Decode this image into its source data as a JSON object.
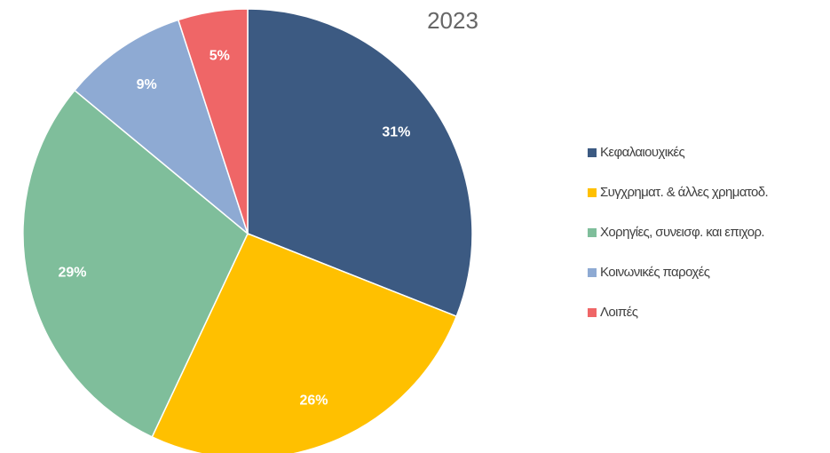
{
  "chart_data": {
    "type": "pie",
    "title": "2023",
    "categories": [
      "Κεφαλαιουχικές",
      "Συγχρηματ. & άλλες χρηματοδ.",
      "Χορηγίες, συνεισφ. και επιχορ.",
      "Κοινωνικές παροχές",
      "Λοιπές"
    ],
    "values": [
      31,
      26,
      29,
      9,
      5
    ],
    "value_labels": [
      "31%",
      "26%",
      "29%",
      "9%",
      "5%"
    ],
    "colors": [
      "#3c5a82",
      "#ffc000",
      "#7fbe9b",
      "#8eaad3",
      "#ef6667"
    ],
    "legend": "right"
  }
}
